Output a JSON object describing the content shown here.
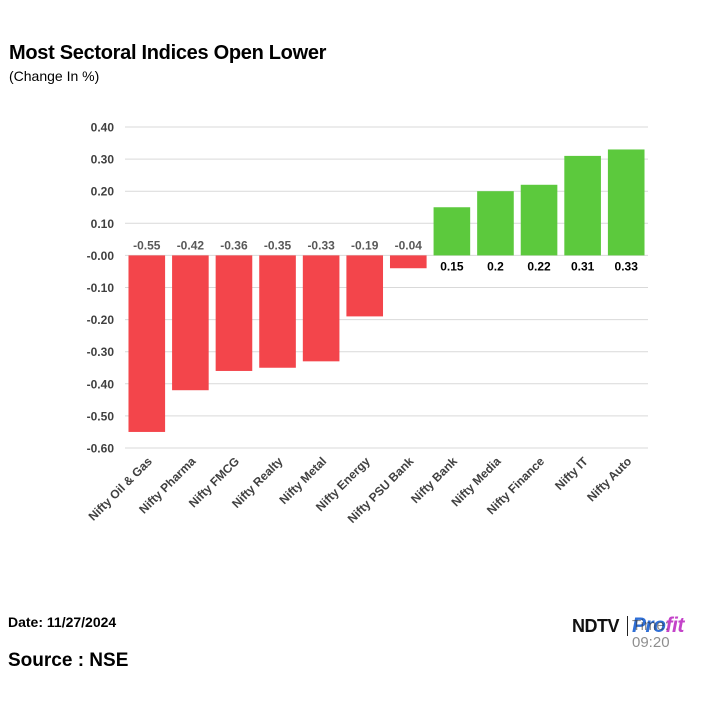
{
  "header": {
    "title": "Most Sectoral Indices Open Lower",
    "subtitle": "(Change In %)"
  },
  "footer": {
    "date": "Date: 11/27/2024",
    "source": "Source : NSE",
    "logo_ndtv": "NDTV",
    "logo_profit_a": "Pro",
    "logo_profit_b": "fit",
    "logo_overlay": "Time: 09:20"
  },
  "colors": {
    "negative": "#f3454b",
    "positive": "#5cc93d",
    "grid": "#d9d9d9",
    "axis_text": "#404040",
    "neg_label": "#595959",
    "pos_label": "#000000"
  },
  "chart_data": {
    "type": "bar",
    "title": "Most Sectoral Indices Open Lower",
    "subtitle": "(Change In %)",
    "xlabel": "",
    "ylabel": "",
    "ylim": [
      -0.6,
      0.4
    ],
    "yticks": [
      0.4,
      0.3,
      0.2,
      0.1,
      0.0,
      -0.1,
      -0.2,
      -0.3,
      -0.4,
      -0.5,
      -0.6
    ],
    "ytick_labels": [
      "0.40",
      "0.30",
      "0.20",
      "0.10",
      "-0.00",
      "-0.10",
      "-0.20",
      "-0.30",
      "-0.40",
      "-0.50",
      "-0.60"
    ],
    "grid": true,
    "legend": "none",
    "categories": [
      "Nifty Oil & Gas",
      "Nifty Pharma",
      "Nifty FMCG",
      "Nifty Realty",
      "Nifty Metal",
      "Nifty Energy",
      "Nifty PSU Bank",
      "Nifty Bank",
      "Nifty Media",
      "Nifty Finance",
      "Nifty IT",
      "Nifty Auto"
    ],
    "values": [
      -0.55,
      -0.42,
      -0.36,
      -0.35,
      -0.33,
      -0.19,
      -0.04,
      0.15,
      0.2,
      0.22,
      0.31,
      0.33
    ],
    "value_labels": [
      "-0.55",
      "-0.42",
      "-0.36",
      "-0.35",
      "-0.33",
      "-0.19",
      "-0.04",
      "0.15",
      "0.2",
      "0.22",
      "0.31",
      "0.33"
    ]
  }
}
